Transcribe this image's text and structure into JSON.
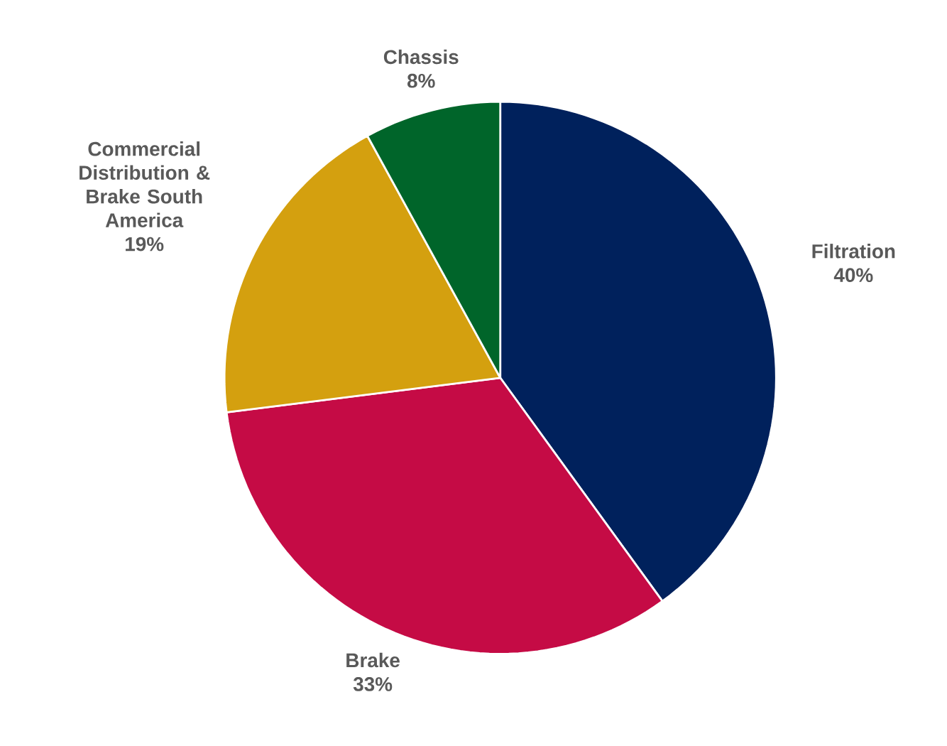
{
  "chart_data": {
    "type": "pie",
    "categories": [
      "Filtration",
      "Brake",
      "Commercial Distribution & Brake South America",
      "Chassis"
    ],
    "values": [
      40,
      33,
      19,
      8
    ],
    "colors": [
      "#00215c",
      "#c50b45",
      "#d4a00f",
      "#00652a"
    ],
    "value_labels": [
      "40%",
      "33%",
      "19%",
      "8%"
    ]
  }
}
